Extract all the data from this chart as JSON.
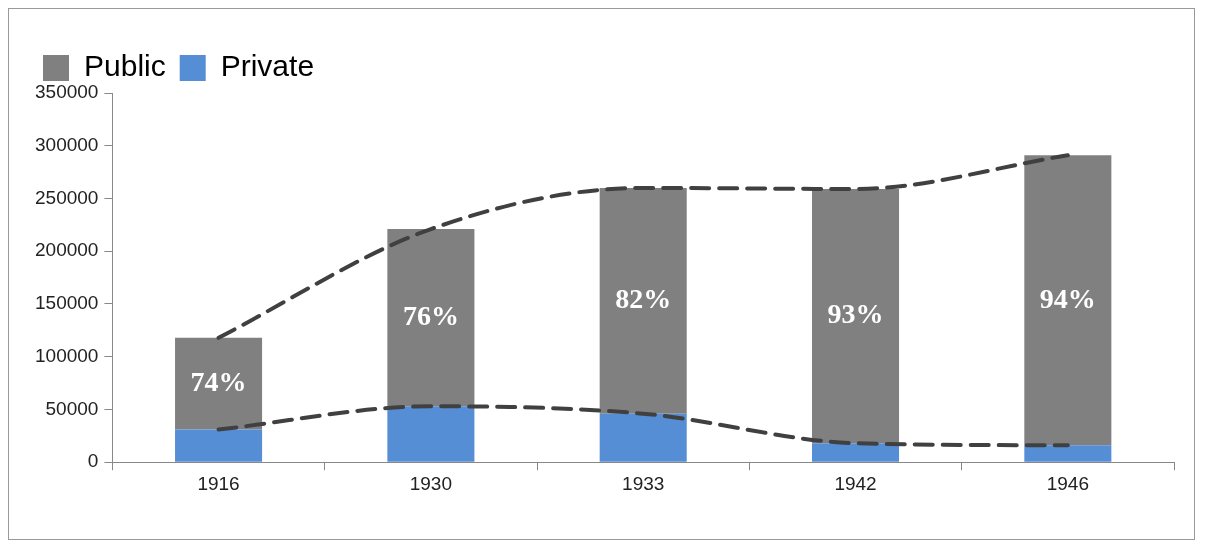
{
  "chart_data": {
    "type": "bar",
    "stacked": true,
    "categories": [
      "1916",
      "1930",
      "1933",
      "1942",
      "1946"
    ],
    "series": [
      {
        "name": "Private",
        "color": "#558ed5",
        "values": [
          31000,
          53000,
          46000,
          18000,
          16000
        ]
      },
      {
        "name": "Public",
        "color": "#808080",
        "values": [
          87000,
          168000,
          214000,
          241000,
          275000
        ]
      },
      {
        "type": "line",
        "color": "#404040",
        "values": [
          118000,
          221000,
          260000,
          259000,
          291000
        ]
      },
      {
        "type": "line",
        "color": "#404040",
        "values": [
          31000,
          53000,
          46000,
          18000,
          16000
        ]
      }
    ],
    "line_style": "dashed",
    "marker": "none",
    "ylim": [
      0,
      350000
    ],
    "yticks": [
      0,
      50000,
      100000,
      150000,
      200000,
      250000,
      300000,
      350000
    ],
    "grid": false,
    "legend": "top left",
    "annotations": [
      "74%",
      "76%",
      "82%",
      "93%",
      "94%"
    ]
  }
}
